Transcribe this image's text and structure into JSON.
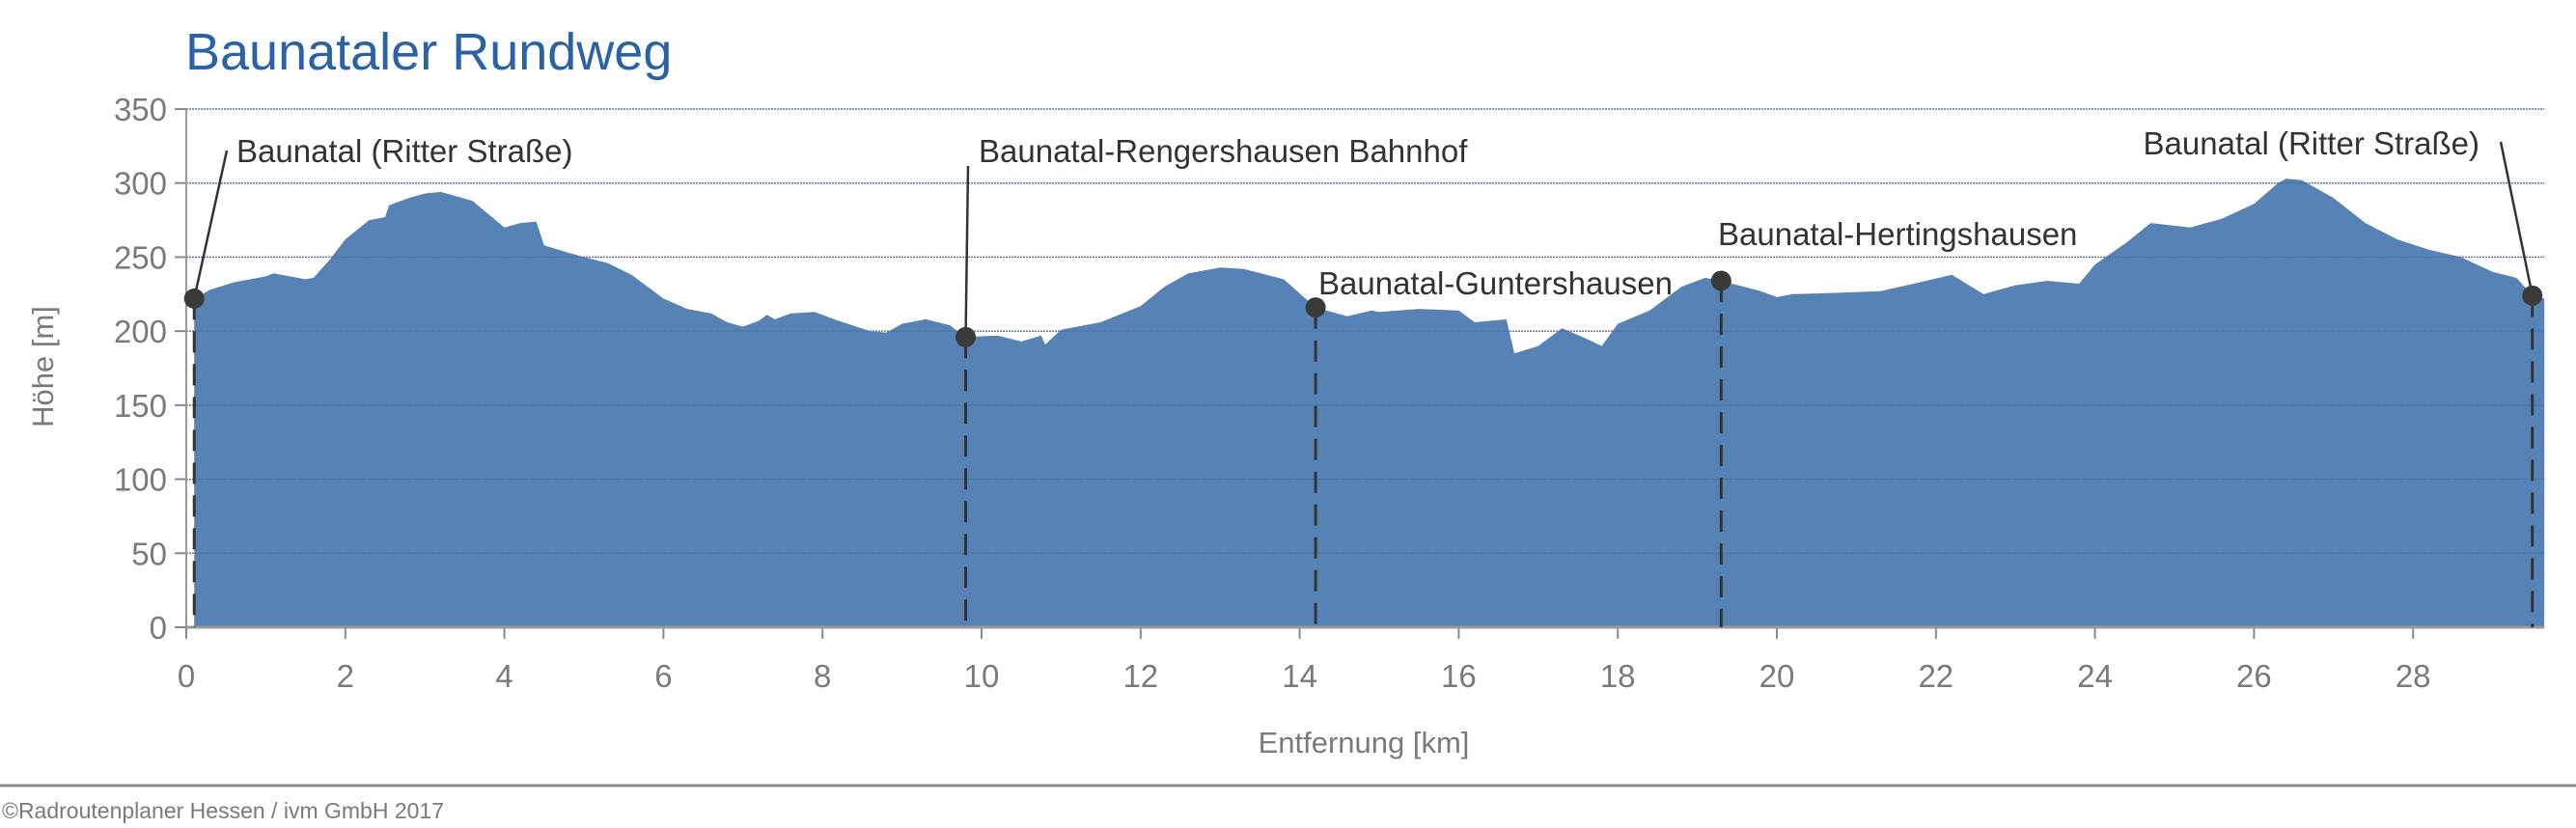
{
  "chart_data": {
    "type": "area",
    "title": "Baunataler Rundweg",
    "xlabel": "Entfernung [km]",
    "ylabel": "Höhe [m]",
    "xlim": [
      0,
      29.65
    ],
    "ylim": [
      0,
      350
    ],
    "xticks": [
      0,
      2,
      4,
      6,
      8,
      10,
      12,
      14,
      16,
      18,
      20,
      22,
      24,
      26,
      28
    ],
    "yticks": [
      0,
      50,
      100,
      150,
      200,
      250,
      300,
      350
    ],
    "grid": true,
    "color": "#5782b6",
    "x": [
      0.1,
      0.3,
      0.6,
      1.0,
      1.1,
      1.5,
      1.6,
      1.8,
      2.0,
      2.3,
      2.5,
      2.55,
      2.8,
      3.0,
      3.2,
      3.6,
      4.0,
      4.2,
      4.4,
      4.5,
      4.8,
      5.0,
      5.3,
      5.6,
      6.0,
      6.3,
      6.6,
      6.8,
      7.0,
      7.2,
      7.3,
      7.4,
      7.6,
      7.9,
      8.2,
      8.6,
      8.8,
      9.0,
      9.3,
      9.6,
      9.8,
      10.2,
      10.5,
      10.75,
      10.8,
      11.0,
      11.5,
      12.0,
      12.3,
      12.6,
      13.0,
      13.3,
      13.8,
      14.2,
      14.6,
      14.9,
      15.0,
      15.5,
      16.0,
      16.2,
      16.6,
      16.7,
      17.0,
      17.3,
      17.6,
      17.8,
      18.0,
      18.4,
      18.8,
      19.1,
      19.3,
      19.8,
      20.0,
      20.2,
      20.8,
      21.3,
      21.8,
      22.2,
      22.6,
      23.0,
      23.4,
      23.8,
      24.0,
      24.4,
      24.7,
      25.2,
      25.6,
      26.0,
      26.3,
      26.4,
      26.6,
      27.0,
      27.4,
      27.8,
      28.2,
      28.6,
      29.0,
      29.3,
      29.5,
      29.65
    ],
    "y": [
      222,
      228,
      233,
      237,
      239,
      235,
      236,
      248,
      262,
      275,
      277,
      285,
      290,
      293,
      294,
      288,
      270,
      273,
      274,
      258,
      253,
      250,
      246,
      238,
      222,
      215,
      212,
      206,
      203,
      207,
      211,
      208,
      212,
      213,
      207,
      200,
      199,
      205,
      208,
      204,
      196,
      197,
      193,
      197,
      191,
      201,
      206,
      217,
      230,
      239,
      243,
      242,
      235,
      216,
      210,
      214,
      213,
      215,
      214,
      206,
      208,
      185,
      190,
      202,
      195,
      190,
      205,
      214,
      230,
      236,
      234,
      227,
      223,
      225,
      226,
      227,
      233,
      238,
      225,
      231,
      234,
      232,
      245,
      260,
      273,
      270,
      276,
      286,
      300,
      303,
      302,
      290,
      273,
      262,
      255,
      250,
      240,
      236,
      224,
      222
    ],
    "waypoints": [
      {
        "km": 0.1,
        "elevation": 222,
        "label": "Baunatal (Ritter Straße)"
      },
      {
        "km": 9.8,
        "elevation": 196,
        "label": "Baunatal-Rengershausen Bahnhof"
      },
      {
        "km": 14.2,
        "elevation": 216,
        "label": "Baunatal-Guntershausen"
      },
      {
        "km": 19.3,
        "elevation": 234,
        "label": "Baunatal-Hertingshausen"
      },
      {
        "km": 29.5,
        "elevation": 224,
        "label": "Baunatal (Ritter Straße)"
      }
    ]
  },
  "footer": {
    "copyright": "©Radroutenplaner Hessen / ivm GmbH 2017"
  }
}
